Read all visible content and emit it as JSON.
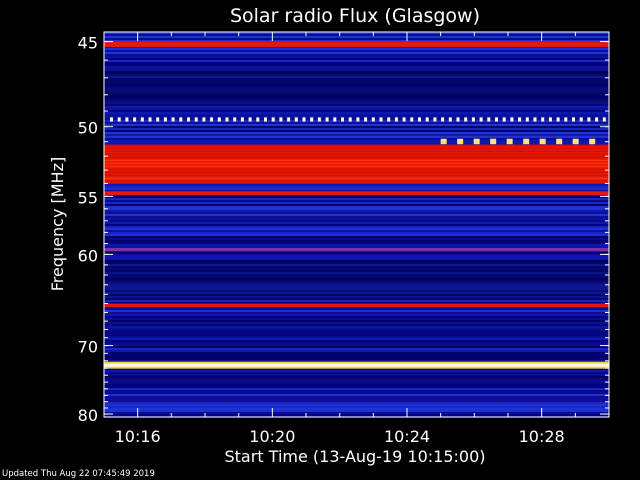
{
  "footer": {
    "updated": "Updated Thu Aug 22 07:45:49 2019"
  },
  "chart_data": {
    "type": "heatmap",
    "title": "Solar radio Flux (Glasgow)",
    "xlabel": "Start Time (13-Aug-19 10:15:00)",
    "ylabel": "Frequency [MHz]",
    "x_ticks": [
      "10:16",
      "10:20",
      "10:24",
      "10:28"
    ],
    "x_tick_minutes": [
      16,
      20,
      24,
      28
    ],
    "x_range_minutes": [
      15,
      30
    ],
    "y_ticks": [
      45,
      50,
      55,
      60,
      70,
      80
    ],
    "y_range": [
      44.5,
      80.5
    ],
    "y_scale": "reciprocal",
    "colormap": [
      "#000040",
      "#0000a0",
      "#1830e0",
      "#c01020",
      "#ff2000",
      "#ffff80",
      "#ffffff"
    ],
    "bands": [
      {
        "freq_from": 45.0,
        "freq_to": 45.3,
        "level": "red"
      },
      {
        "freq_from": 49.4,
        "freq_to": 49.6,
        "level": "intermittent-white"
      },
      {
        "freq_from": 50.8,
        "freq_to": 51.1,
        "level": "intermittent-yellow",
        "time_from": 25.0
      },
      {
        "freq_from": 51.2,
        "freq_to": 54.0,
        "level": "orange-red"
      },
      {
        "freq_from": 54.6,
        "freq_to": 54.9,
        "level": "red"
      },
      {
        "freq_from": 59.4,
        "freq_to": 59.7,
        "level": "purple"
      },
      {
        "freq_from": 65.0,
        "freq_to": 65.4,
        "level": "red"
      },
      {
        "freq_from": 72.4,
        "freq_to": 72.8,
        "level": "white"
      }
    ]
  }
}
